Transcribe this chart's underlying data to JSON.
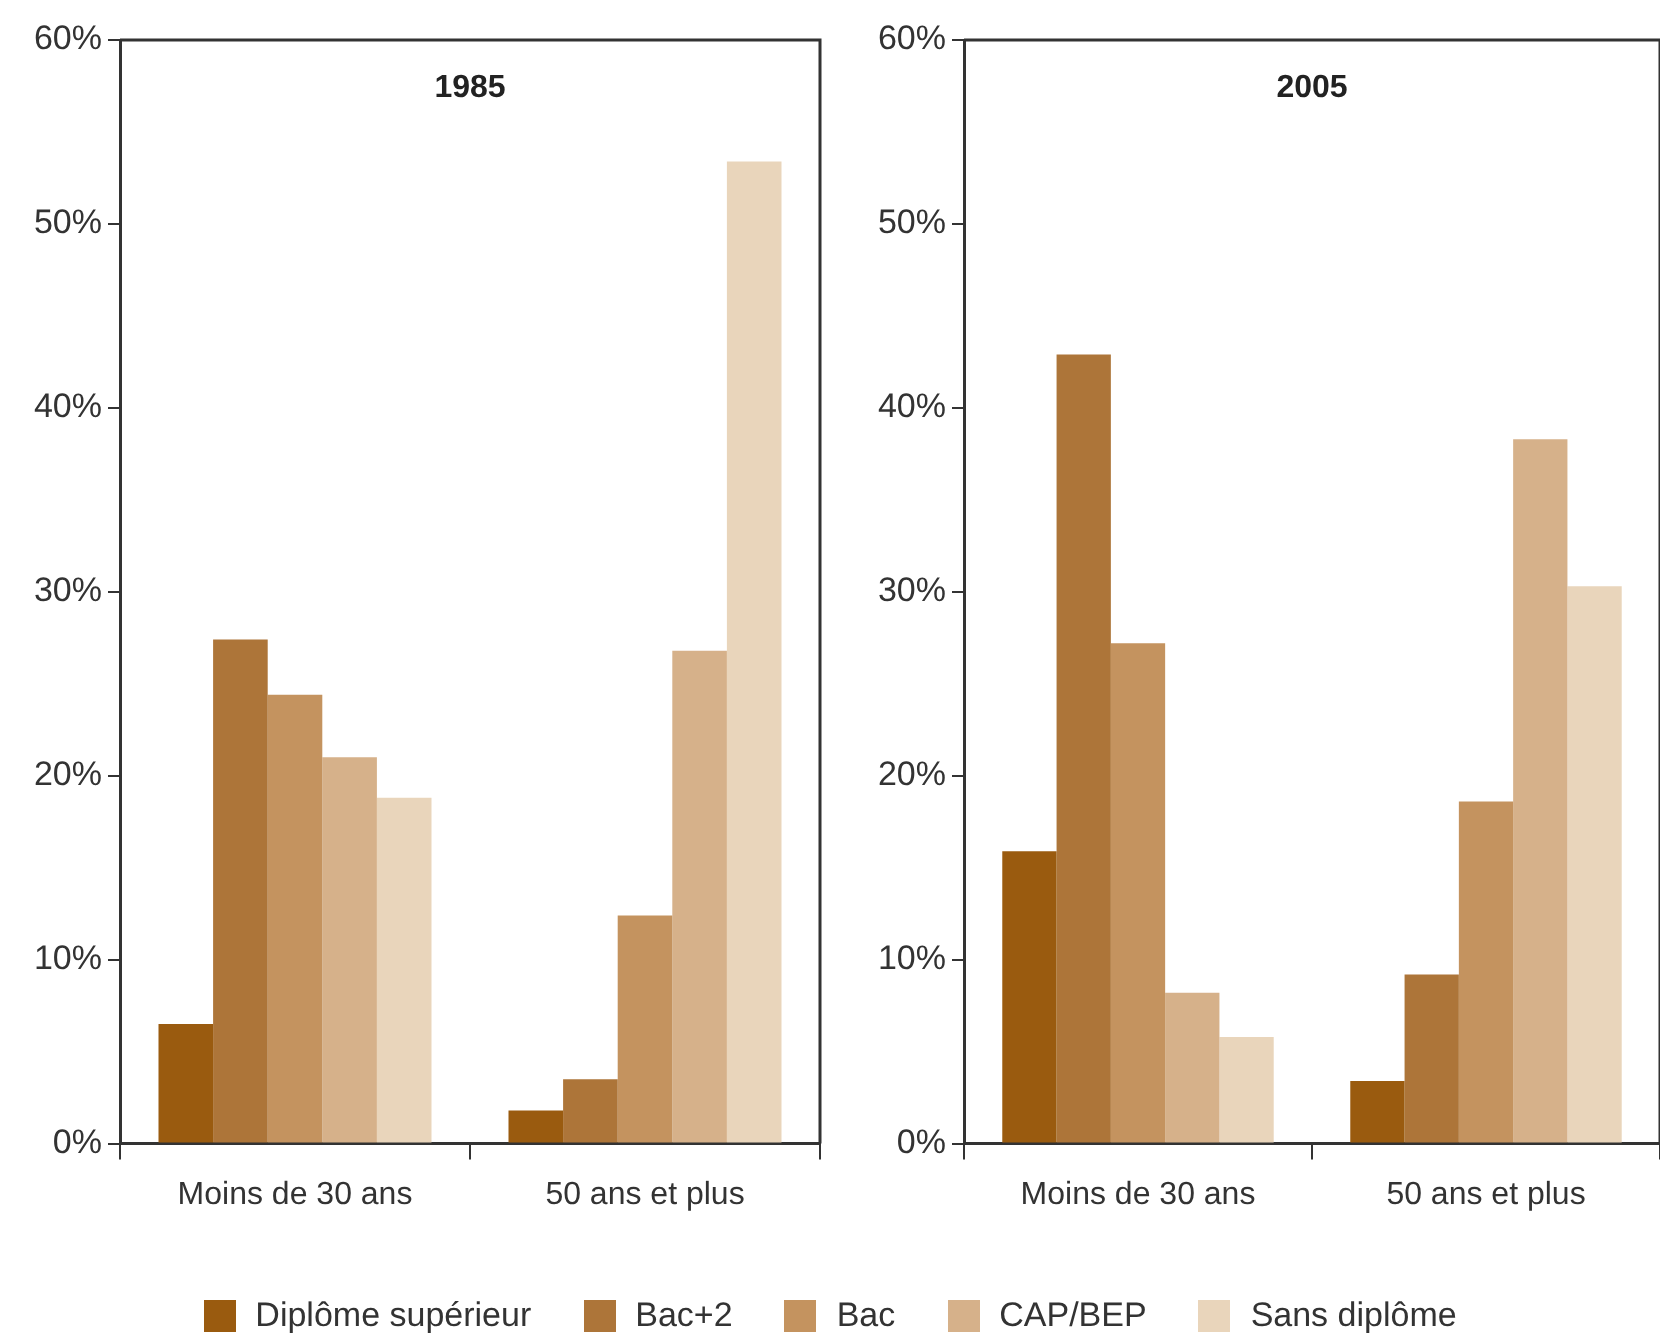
{
  "chart_data": [
    {
      "type": "bar",
      "title": "1985",
      "categories": [
        "Moins de 30 ans",
        "50 ans et plus"
      ],
      "ylim": [
        0,
        60
      ],
      "yticks": [
        {
          "value": 0,
          "label": "0%"
        },
        {
          "value": 10,
          "label": "10%"
        },
        {
          "value": 20,
          "label": "20%"
        },
        {
          "value": 30,
          "label": "30%"
        },
        {
          "value": 40,
          "label": "40%"
        },
        {
          "value": 50,
          "label": "50%"
        },
        {
          "value": 60,
          "label": "60%"
        }
      ],
      "grid": false,
      "legend": "bottom",
      "series": [
        {
          "name": "Diplôme supérieur",
          "color": "#9a5b0f",
          "values": [
            6.5,
            1.8
          ]
        },
        {
          "name": "Bac+2",
          "color": "#ad7539",
          "values": [
            27.4,
            3.5
          ]
        },
        {
          "name": "Bac",
          "color": "#c4935f",
          "values": [
            24.4,
            12.4
          ]
        },
        {
          "name": "CAP/BEP",
          "color": "#d6b18a",
          "values": [
            21.0,
            26.8
          ]
        },
        {
          "name": "Sans diplôme",
          "color": "#e9d5bb",
          "values": [
            18.8,
            53.4
          ]
        }
      ]
    },
    {
      "type": "bar",
      "title": "2005",
      "categories": [
        "Moins de 30 ans",
        "50 ans et plus"
      ],
      "ylim": [
        0,
        60
      ],
      "yticks": [
        {
          "value": 0,
          "label": "0%"
        },
        {
          "value": 10,
          "label": "10%"
        },
        {
          "value": 20,
          "label": "20%"
        },
        {
          "value": 30,
          "label": "30%"
        },
        {
          "value": 40,
          "label": "40%"
        },
        {
          "value": 50,
          "label": "50%"
        },
        {
          "value": 60,
          "label": "60%"
        }
      ],
      "grid": false,
      "legend": "bottom",
      "series": [
        {
          "name": "Diplôme supérieur",
          "color": "#9a5b0f",
          "values": [
            15.9,
            3.4
          ]
        },
        {
          "name": "Bac+2",
          "color": "#ad7539",
          "values": [
            42.9,
            9.2
          ]
        },
        {
          "name": "Bac",
          "color": "#c4935f",
          "values": [
            27.2,
            18.6
          ]
        },
        {
          "name": "CAP/BEP",
          "color": "#d6b18a",
          "values": [
            8.2,
            38.3
          ]
        },
        {
          "name": "Sans diplôme",
          "color": "#e9d5bb",
          "values": [
            5.8,
            30.3
          ]
        }
      ]
    }
  ]
}
